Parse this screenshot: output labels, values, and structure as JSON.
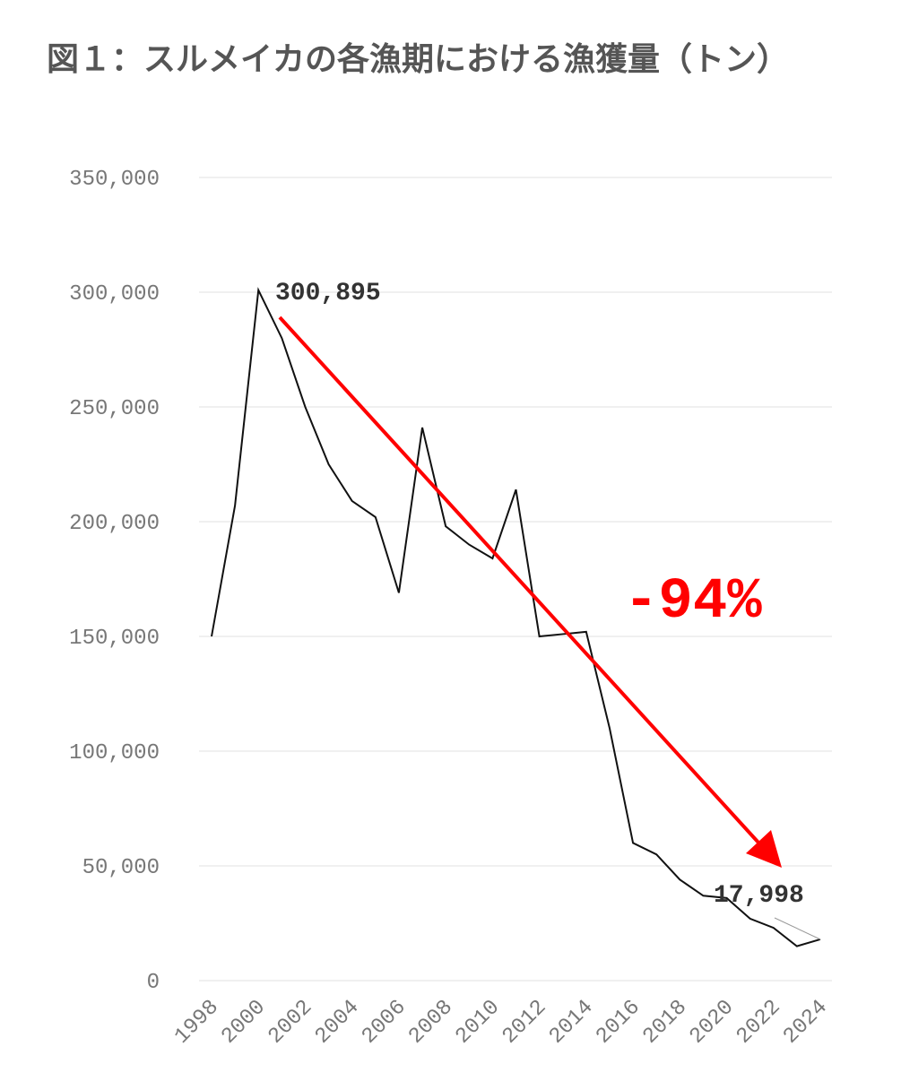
{
  "chart_data": {
    "type": "line",
    "title": "図１：スルメイカの各漁期における漁獲量（トン）",
    "categories": [
      "1998",
      null,
      "2000",
      null,
      "2002",
      null,
      "2004",
      null,
      "2006",
      null,
      "2008",
      null,
      "2010",
      null,
      "2012",
      null,
      "2014",
      null,
      "2016",
      null,
      "2018",
      null,
      "2020",
      null,
      "2022",
      null,
      "2024"
    ],
    "series": [
      {
        "color": "#111111",
        "values": [
          150000,
          207000,
          300895,
          280000,
          250000,
          225000,
          209000,
          202000,
          169000,
          241000,
          198000,
          190000,
          184000,
          214000,
          150000,
          151000,
          152000,
          110000,
          60000,
          55000,
          44000,
          37000,
          36000,
          27000,
          23000,
          15000,
          17998
        ]
      }
    ],
    "ylim": [
      0,
      350000
    ],
    "yticks": [
      0,
      {
        "value": 50000,
        "label": "50,000"
      },
      {
        "value": 100000,
        "label": "100,000"
      },
      {
        "value": 150000,
        "label": "150,000"
      },
      {
        "value": 200000,
        "label": "200,000"
      },
      {
        "value": 250000,
        "label": "250,000"
      },
      {
        "value": 300000,
        "label": "300,000"
      },
      {
        "value": 350000,
        "label": "350,000"
      }
    ],
    "grid": true,
    "annotations": [
      "300,895",
      "17,998",
      "-94%"
    ],
    "arrow_color": "#ff0000"
  }
}
